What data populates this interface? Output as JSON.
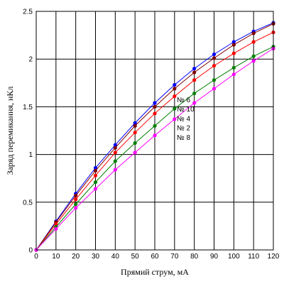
{
  "chart_data": {
    "type": "line",
    "title": "",
    "xlabel": "Прямий струм, мА",
    "ylabel": "Заряд перемикання, нКл",
    "xlim": [
      0,
      120
    ],
    "ylim": [
      0,
      2.5
    ],
    "xticks": [
      0,
      10,
      20,
      30,
      40,
      50,
      60,
      70,
      80,
      90,
      100,
      110,
      120
    ],
    "yticks": [
      0,
      0.5,
      1,
      1.5,
      2,
      2.5
    ],
    "ytick_labels": [
      "0",
      "0.5",
      "1",
      "1.5",
      "2",
      "2.5"
    ],
    "grid": true,
    "legend_position": "center",
    "x": [
      0,
      10,
      20,
      30,
      40,
      50,
      60,
      70,
      80,
      90,
      100,
      110,
      120
    ],
    "series": [
      {
        "name": "№ 6",
        "color": "#0000ff",
        "values": [
          0,
          0.3,
          0.59,
          0.86,
          1.1,
          1.33,
          1.54,
          1.73,
          1.9,
          2.05,
          2.18,
          2.29,
          2.38
        ]
      },
      {
        "name": "№ 10",
        "color": "#800000",
        "values": [
          0,
          0.29,
          0.57,
          0.83,
          1.07,
          1.3,
          1.5,
          1.69,
          1.86,
          2.01,
          2.15,
          2.27,
          2.37
        ]
      },
      {
        "name": "№ 4",
        "color": "#ff0000",
        "values": [
          0,
          0.27,
          0.53,
          0.78,
          1.02,
          1.23,
          1.43,
          1.61,
          1.78,
          1.93,
          2.06,
          2.18,
          2.28
        ]
      },
      {
        "name": "№ 2",
        "color": "#008000",
        "values": [
          0,
          0.24,
          0.48,
          0.71,
          0.93,
          1.12,
          1.3,
          1.48,
          1.64,
          1.78,
          1.91,
          2.03,
          2.13
        ]
      },
      {
        "name": "№ 8",
        "color": "#ff00ff",
        "values": [
          0,
          0.22,
          0.44,
          0.64,
          0.84,
          1.02,
          1.2,
          1.37,
          1.54,
          1.69,
          1.84,
          1.98,
          2.11
        ]
      }
    ]
  }
}
